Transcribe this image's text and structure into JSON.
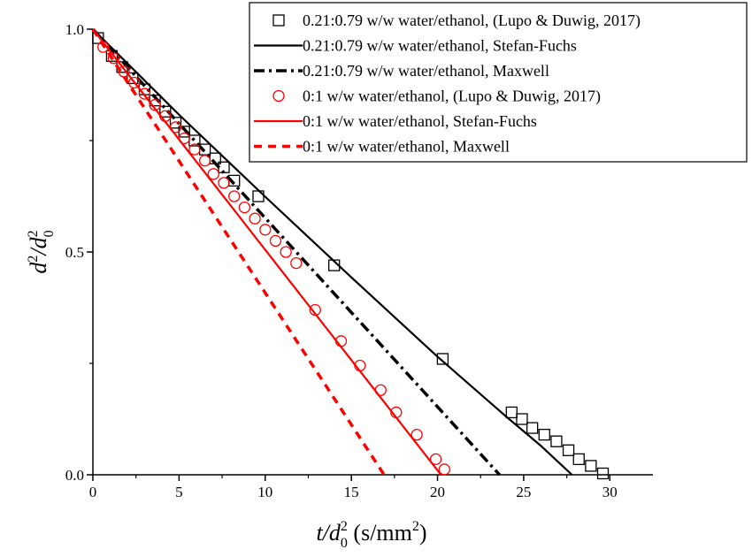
{
  "chart_data": {
    "type": "line",
    "title": "",
    "xlabel": {
      "t": "t",
      "slash": "/d",
      "sub": "0",
      "sup": "2",
      "unit": " (s/mm",
      "unit_sup": "2",
      "unit_end": ")"
    },
    "ylabel": {
      "d": "d",
      "sup1": "2",
      "slash": "/d",
      "sub": "0",
      "sup2": "2"
    },
    "xlim": [
      0,
      32.5
    ],
    "ylim": [
      0,
      1.0
    ],
    "xticks": [
      0,
      5,
      10,
      15,
      20,
      25,
      30
    ],
    "xtick_labels": [
      "0",
      "5",
      "10",
      "15",
      "20",
      "25",
      "30"
    ],
    "yticks": [
      0,
      0.5,
      1.0
    ],
    "ytick_labels": [
      "0.0",
      "0.5",
      "1.0"
    ],
    "grid": false,
    "legend_position": "top-right",
    "colors": {
      "black": "#000000",
      "red": "#ff0000"
    },
    "series": [
      {
        "name": "0.21:0.79 w/w water/ethanol, (Lupo & Duwig, 2017)",
        "kind": "marker-square",
        "color": "#000000",
        "x": [
          0.3,
          1.1,
          1.7,
          2.3,
          3.0,
          3.6,
          4.2,
          4.8,
          5.3,
          5.9,
          6.5,
          7.1,
          7.6,
          8.2,
          9.6,
          14.0,
          20.3,
          24.3,
          24.9,
          25.5,
          26.2,
          26.9,
          27.6,
          28.2,
          28.9,
          29.6
        ],
        "y": [
          0.98,
          0.94,
          0.915,
          0.89,
          0.865,
          0.84,
          0.815,
          0.79,
          0.77,
          0.75,
          0.73,
          0.71,
          0.69,
          0.66,
          0.625,
          0.47,
          0.26,
          0.14,
          0.125,
          0.105,
          0.09,
          0.075,
          0.055,
          0.035,
          0.02,
          0.003
        ]
      },
      {
        "name": "0.21:0.79 w/w water/ethanol, Stefan-Fuchs",
        "kind": "line-solid",
        "color": "#000000",
        "x": [
          0,
          5,
          10,
          15,
          20,
          24,
          26,
          27.8
        ],
        "y": [
          1.0,
          0.808,
          0.624,
          0.443,
          0.265,
          0.13,
          0.065,
          0.0
        ]
      },
      {
        "name": "0.21:0.79 w/w water/ethanol, Maxwell",
        "kind": "line-dashdot",
        "color": "#000000",
        "x": [
          0,
          23.6
        ],
        "y": [
          1.0,
          0.0
        ]
      },
      {
        "name": "0:1 w/w water/ethanol, (Lupo & Duwig, 2017)",
        "kind": "marker-circle",
        "color": "#ff0000",
        "x": [
          0.6,
          1.2,
          1.8,
          2.4,
          3.0,
          3.6,
          4.2,
          4.8,
          5.3,
          5.9,
          6.5,
          7.0,
          7.6,
          8.2,
          8.8,
          9.4,
          10.0,
          10.6,
          11.2,
          11.8,
          12.9,
          14.4,
          15.5,
          16.7,
          17.6,
          18.8,
          19.9,
          20.4
        ],
        "y": [
          0.96,
          0.935,
          0.905,
          0.88,
          0.855,
          0.83,
          0.805,
          0.78,
          0.755,
          0.73,
          0.705,
          0.675,
          0.655,
          0.625,
          0.6,
          0.575,
          0.55,
          0.525,
          0.5,
          0.475,
          0.37,
          0.3,
          0.245,
          0.19,
          0.14,
          0.09,
          0.035,
          0.012
        ]
      },
      {
        "name": "0:1 w/w water/ethanol, Stefan-Fuchs",
        "kind": "line-solid",
        "color": "#ff0000",
        "x": [
          0,
          20.2
        ],
        "y": [
          1.0,
          0.0
        ]
      },
      {
        "name": "0:1 w/w water/ethanol, Maxwell",
        "kind": "line-dash",
        "color": "#ff0000",
        "x": [
          0,
          16.9
        ],
        "y": [
          1.0,
          0.0
        ]
      }
    ]
  }
}
